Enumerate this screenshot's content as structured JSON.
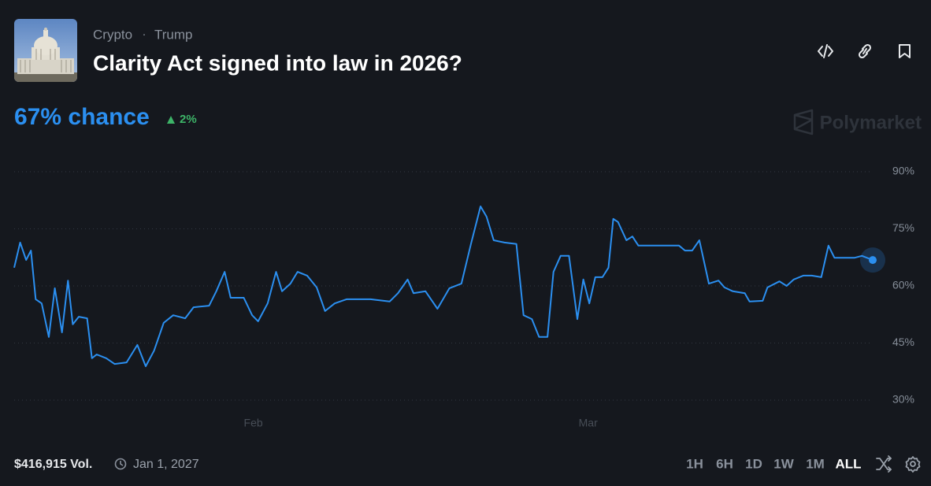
{
  "header": {
    "tags": [
      "Crypto",
      "Trump"
    ],
    "separator": "·",
    "title": "Clarity Act signed into law in 2026?",
    "chance": "67% chance",
    "change": "2%"
  },
  "brand": "Polymarket",
  "chart_data": {
    "type": "line",
    "color": "#2b8ff0",
    "x": [
      0,
      0.5,
      1.0,
      1.4,
      1.8,
      2.3,
      2.9,
      3.4,
      4.0,
      4.5,
      4.9,
      5.4,
      6.1,
      6.5,
      6.9,
      7.7,
      8.4,
      9.4,
      10.3,
      11.0,
      11.7,
      12.5,
      13.3,
      14.3,
      15.0,
      16.3,
      16.9,
      17.6,
      18.1,
      19.2,
      19.9,
      20.4,
      21.2,
      21.9,
      22.4,
      23.1,
      23.7,
      24.5,
      25.3,
      26.0,
      26.8,
      27.8,
      28.5,
      29.8,
      31.4,
      32.1,
      32.9,
      33.4,
      34.4,
      35.4,
      36.4,
      37.4,
      38.2,
      39.0,
      39.5,
      40.1,
      41.0,
      42.0,
      42.6,
      43.3,
      43.9,
      44.6,
      45.1,
      45.7,
      46.4,
      47.1,
      47.6,
      48.1,
      48.6,
      49.2,
      49.7,
      50.1,
      50.5,
      51.2,
      51.7,
      52.2,
      53.5,
      54.8,
      55.6,
      56.1,
      56.7,
      57.3,
      58.1,
      58.9,
      59.4,
      60.1,
      61.1,
      61.5,
      62.6,
      63.0,
      64.0,
      64.6,
      65.2,
      66.0,
      66.7,
      67.5,
      68.1,
      68.6,
      70.3,
      70.9,
      71.8
    ],
    "values": [
      64.8,
      71.4,
      66.8,
      69.3,
      56.5,
      55.4,
      46.6,
      59.4,
      47.8,
      61.4,
      49.9,
      51.9,
      51.5,
      41.0,
      42.0,
      41.0,
      39.5,
      39.9,
      44.5,
      38.9,
      43.0,
      50.3,
      52.3,
      51.5,
      54.4,
      54.8,
      58.6,
      63.7,
      56.9,
      56.9,
      52.3,
      50.7,
      55.4,
      63.7,
      58.6,
      60.6,
      63.7,
      62.7,
      59.6,
      53.4,
      55.4,
      56.5,
      56.5,
      56.5,
      55.9,
      58.1,
      61.7,
      58.1,
      58.6,
      54.0,
      59.4,
      60.6,
      71.0,
      80.9,
      78.2,
      72.0,
      71.4,
      71.0,
      52.3,
      51.3,
      46.6,
      46.6,
      63.7,
      67.9,
      67.9,
      51.3,
      61.7,
      55.4,
      62.3,
      62.3,
      64.8,
      77.6,
      76.8,
      72.0,
      73.0,
      70.6,
      70.6,
      70.6,
      70.6,
      69.3,
      69.3,
      72.0,
      60.6,
      61.4,
      59.6,
      58.6,
      58.1,
      55.9,
      56.1,
      59.6,
      61.2,
      60.0,
      61.7,
      62.7,
      62.7,
      62.3,
      70.6,
      67.4,
      67.4,
      67.9,
      66.8
    ],
    "xlim": [
      0,
      71.8
    ],
    "xticks": [
      {
        "value": 20,
        "label": "Feb"
      },
      {
        "value": 48,
        "label": "Mar"
      }
    ],
    "ylim": [
      30,
      90
    ],
    "yticks": [
      {
        "value": 30,
        "label": "30%"
      },
      {
        "value": 45,
        "label": "45%"
      },
      {
        "value": 60,
        "label": "60%"
      },
      {
        "value": 75,
        "label": "75%"
      },
      {
        "value": 90,
        "label": "90%"
      }
    ],
    "grid": true
  },
  "footer": {
    "volume": "$416,915 Vol.",
    "end_date": "Jan 1, 2027",
    "ranges": [
      "1H",
      "6H",
      "1D",
      "1W",
      "1M",
      "ALL"
    ],
    "active_range": 5
  }
}
